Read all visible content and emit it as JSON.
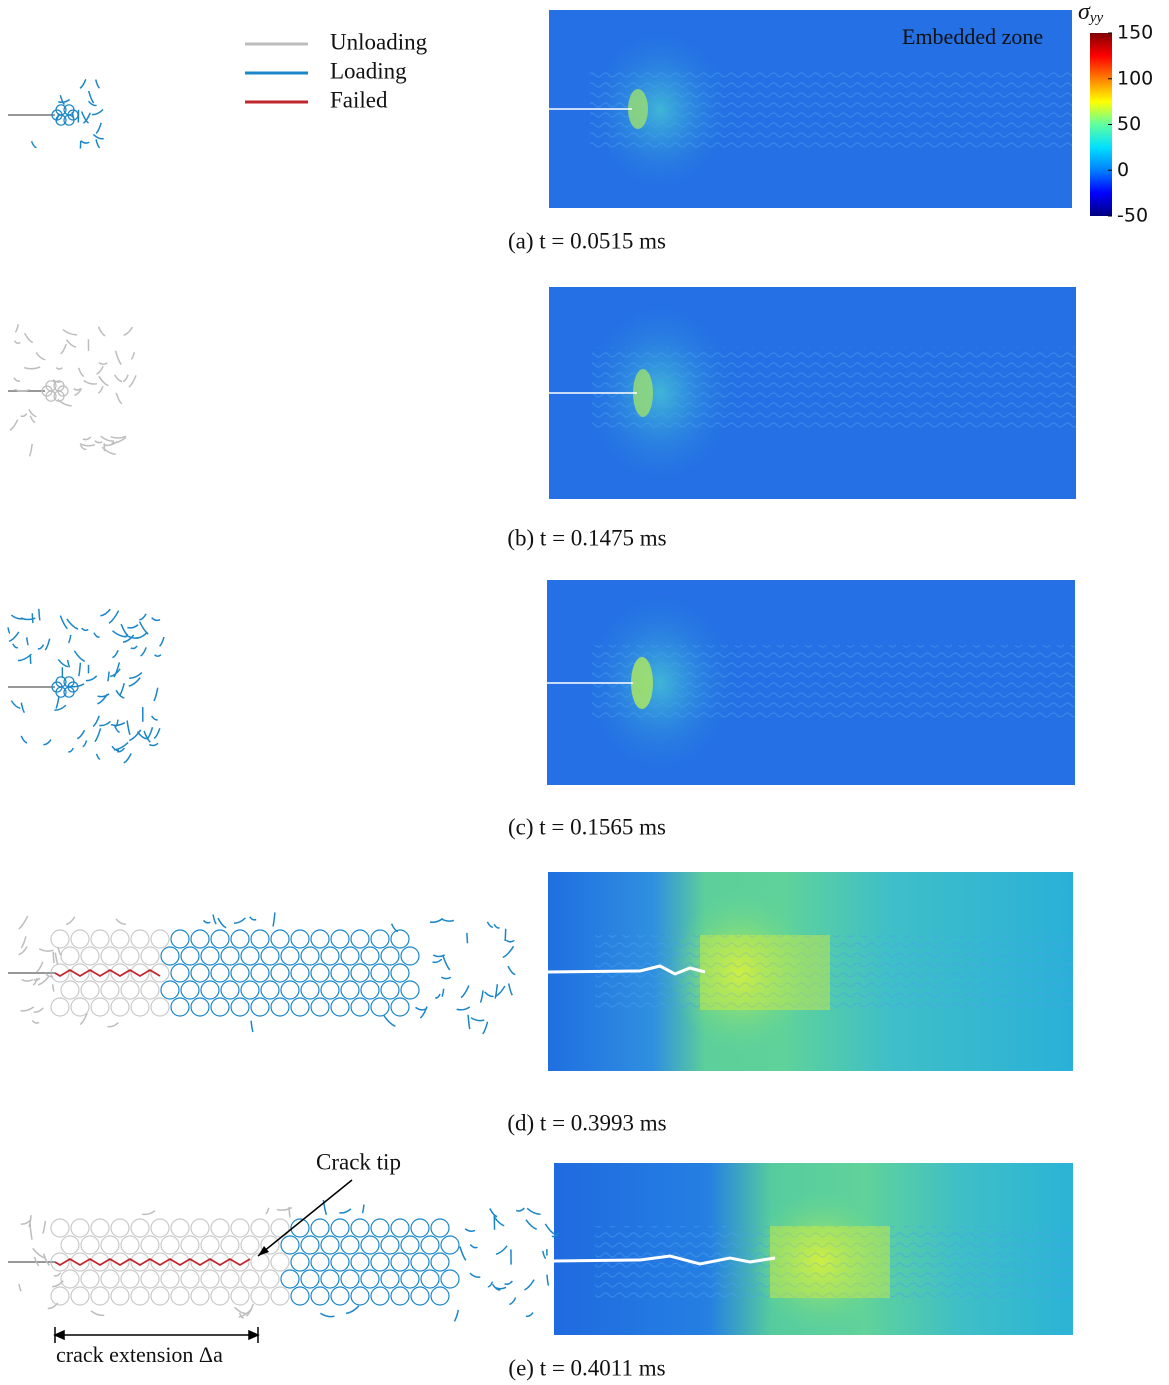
{
  "legend": {
    "items": [
      {
        "label": "Unloading",
        "color": "#bdbdbd"
      },
      {
        "label": "Loading",
        "color": "#1a86c8"
      },
      {
        "label": "Failed",
        "color": "#c0272d"
      }
    ]
  },
  "colorbar": {
    "symbol": "σ",
    "subscript": "yy",
    "ticks": [
      150,
      100,
      50,
      0,
      -50
    ]
  },
  "annotations": {
    "embedded_zone": "Embedded zone",
    "crack_tip": "Crack tip",
    "crack_extension": "crack extension Δa"
  },
  "panels": [
    {
      "caption": "(a) t = 0.0515 ms"
    },
    {
      "caption": "(b) t = 0.1475 ms"
    },
    {
      "caption": "(c) t = 0.1565 ms"
    },
    {
      "caption": "(d) t = 0.3993 ms"
    },
    {
      "caption": "(e) t = 0.4011 ms"
    }
  ]
}
